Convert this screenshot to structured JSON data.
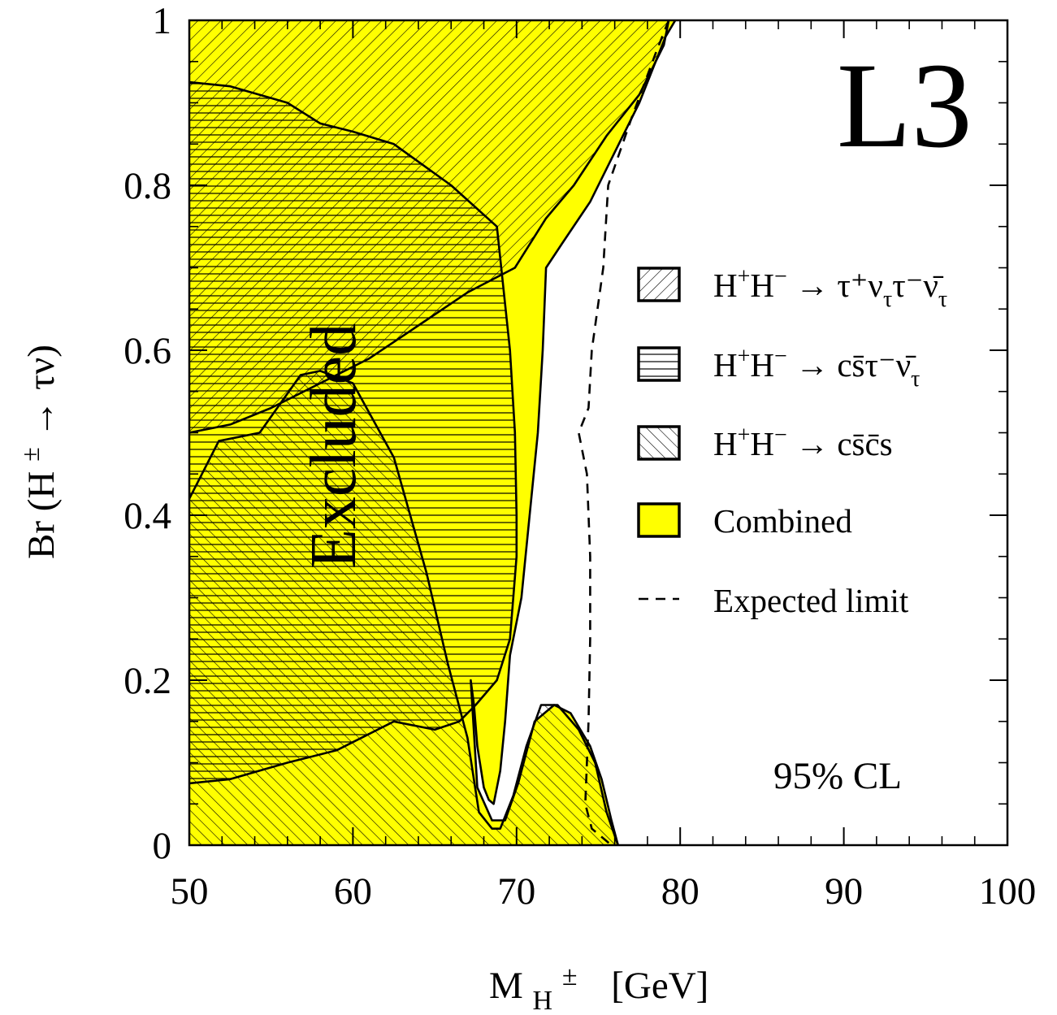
{
  "chart_data": {
    "type": "area",
    "experiment": "L3",
    "annotation": "Excluded",
    "cl_label": "95% CL",
    "xlabel_main": "M",
    "xlabel_sub": "H",
    "xlabel_sup": "±",
    "xlabel_unit": "[GeV]",
    "ylabel": "Br (H",
    "ylabel_sup": "±",
    "ylabel_tail": "→ τν)",
    "xlim": [
      50,
      100
    ],
    "ylim": [
      0,
      1
    ],
    "x_ticks": [
      "50",
      "60",
      "70",
      "80",
      "90",
      "100"
    ],
    "y_ticks": [
      "0",
      "0.2",
      "0.4",
      "0.6",
      "0.8",
      "1"
    ],
    "grid": false,
    "legend_position": "right",
    "colors": {
      "combined": "#ffff00",
      "outline": "#000000",
      "background": "#ffffff"
    },
    "legend": [
      {
        "key": "taunu",
        "pattern": "diag-up",
        "base": "H",
        "s1": "+",
        "mid": "H",
        "s2": "−",
        "arrow": " → ",
        "final": "τ⁺ν",
        "final_sub": "τ",
        "final2": "τ⁻ν̄",
        "final2_sub": "τ"
      },
      {
        "key": "cstau",
        "pattern": "horizontal",
        "base": "H",
        "s1": "+",
        "mid": "H",
        "s2": "−",
        "arrow": " → ",
        "final": "cs̄τ⁻ν̄",
        "final_sub": "τ",
        "final2": "",
        "final2_sub": ""
      },
      {
        "key": "cscs",
        "pattern": "diag-down",
        "base": "H",
        "s1": "+",
        "mid": "H",
        "s2": "−",
        "arrow": " → ",
        "final": "cs̄c̄s",
        "final_sub": "",
        "final2": "",
        "final2_sub": ""
      },
      {
        "key": "combined",
        "pattern": "solid-yellow",
        "label": "Combined"
      },
      {
        "key": "expected",
        "pattern": "dashed-line",
        "label": "Expected limit"
      }
    ],
    "series": [
      {
        "name": "Combined",
        "polygon": [
          [
            50,
            1
          ],
          [
            79.7,
            1
          ],
          [
            79.1,
            0.98
          ],
          [
            77.5,
            0.9
          ],
          [
            76,
            0.84
          ],
          [
            74.5,
            0.78
          ],
          [
            72.8,
            0.73
          ],
          [
            71.8,
            0.7
          ],
          [
            71.6,
            0.6
          ],
          [
            71.3,
            0.5
          ],
          [
            70.8,
            0.4
          ],
          [
            70.3,
            0.3
          ],
          [
            69.6,
            0.23
          ],
          [
            69.3,
            0.15
          ],
          [
            69,
            0.09
          ],
          [
            68.6,
            0.05
          ],
          [
            68.3,
            0.055
          ],
          [
            68,
            0.07
          ],
          [
            67.6,
            0.12
          ],
          [
            67.4,
            0.17
          ],
          [
            67.2,
            0.2
          ],
          [
            67.6,
            0.07
          ],
          [
            68.5,
            0.03
          ],
          [
            69.3,
            0.03
          ],
          [
            70.1,
            0.075
          ],
          [
            71.1,
            0.15
          ],
          [
            72.3,
            0.17
          ],
          [
            73.3,
            0.16
          ],
          [
            74.5,
            0.12
          ],
          [
            75.2,
            0.08
          ],
          [
            75.8,
            0.03
          ],
          [
            76.2,
            0
          ],
          [
            50,
            0
          ]
        ]
      },
      {
        "name": "H⁺H⁻ → τ⁺ντ τ⁻ν̄τ",
        "boundary": [
          [
            50,
            0.5
          ],
          [
            52.5,
            0.51
          ],
          [
            55,
            0.53
          ],
          [
            58,
            0.56
          ],
          [
            61,
            0.59
          ],
          [
            64,
            0.63
          ],
          [
            67,
            0.67
          ],
          [
            69.9,
            0.7
          ],
          [
            71.8,
            0.76
          ],
          [
            73.5,
            0.8
          ],
          [
            75.5,
            0.86
          ],
          [
            77.5,
            0.91
          ],
          [
            79,
            0.97
          ],
          [
            79.3,
            1
          ]
        ]
      },
      {
        "name": "H⁺H⁻ → cs̄τ⁻ν̄τ",
        "boundary": [
          [
            50,
            0.925
          ],
          [
            52.5,
            0.92
          ],
          [
            56,
            0.9
          ],
          [
            58,
            0.875
          ],
          [
            60,
            0.865
          ],
          [
            62.5,
            0.85
          ],
          [
            66,
            0.8
          ],
          [
            68.8,
            0.75
          ],
          [
            69.6,
            0.6
          ],
          [
            69.9,
            0.5
          ],
          [
            70,
            0.4
          ],
          [
            70,
            0.35
          ],
          [
            69.6,
            0.25
          ],
          [
            68.8,
            0.2
          ],
          [
            67.5,
            0.17
          ],
          [
            66.5,
            0.15
          ],
          [
            65,
            0.14
          ],
          [
            62.5,
            0.15
          ],
          [
            59,
            0.115
          ],
          [
            56,
            0.1
          ],
          [
            52.5,
            0.08
          ],
          [
            50,
            0.075
          ]
        ]
      },
      {
        "name": "H⁺H⁻ → cs̄c̄s",
        "boundary": [
          [
            50,
            0.42
          ],
          [
            51.8,
            0.49
          ],
          [
            54.3,
            0.5
          ],
          [
            56.8,
            0.57
          ],
          [
            58,
            0.575
          ],
          [
            60,
            0.56
          ],
          [
            62.5,
            0.47
          ],
          [
            64.5,
            0.33
          ],
          [
            65.8,
            0.22
          ],
          [
            67,
            0.13
          ],
          [
            67.7,
            0.04
          ],
          [
            68.5,
            0.02
          ],
          [
            69,
            0.02
          ],
          [
            69.8,
            0.06
          ],
          [
            70.6,
            0.12
          ],
          [
            71.5,
            0.17
          ],
          [
            72.5,
            0.17
          ],
          [
            73.8,
            0.14
          ],
          [
            74.8,
            0.1
          ],
          [
            75.5,
            0.04
          ],
          [
            76.2,
            0
          ]
        ]
      },
      {
        "name": "Expected limit",
        "line": [
          [
            79.3,
            1
          ],
          [
            78.5,
            0.96
          ],
          [
            77,
            0.88
          ],
          [
            75.6,
            0.8
          ],
          [
            75.3,
            0.7
          ],
          [
            74.6,
            0.6
          ],
          [
            74.4,
            0.53
          ],
          [
            73.8,
            0.5
          ],
          [
            74.3,
            0.45
          ],
          [
            74.5,
            0.35
          ],
          [
            74.5,
            0.25
          ],
          [
            74.4,
            0.15
          ],
          [
            74.2,
            0.05
          ],
          [
            74.6,
            0.02
          ],
          [
            75.8,
            0
          ]
        ]
      }
    ]
  }
}
